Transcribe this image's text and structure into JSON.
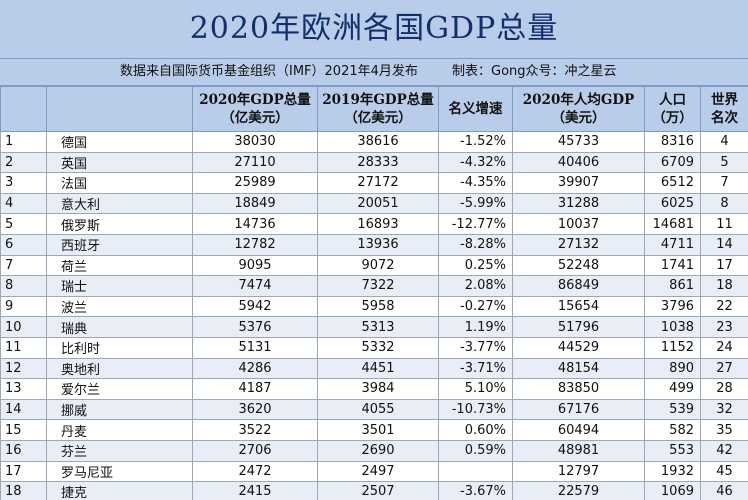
{
  "title": "2020年欧洲各国GDP总量",
  "source_note": "数据来自国际货币基金组织（IMF）2021年4月发布",
  "maker_note": "制表：Gong众号：冲之星云",
  "headers": [
    {
      "l1": "",
      "l2": ""
    },
    {
      "l1": "",
      "l2": ""
    },
    {
      "l1": "2020年GDP总量",
      "l2": "（亿美元）"
    },
    {
      "l1": "2019年GDP总量",
      "l2": "（亿美元）"
    },
    {
      "l1": "名义增速",
      "l2": ""
    },
    {
      "l1": "2020年人均GDP",
      "l2": "（美元）"
    },
    {
      "l1": "人口",
      "l2": "（万）"
    },
    {
      "l1": "世界",
      "l2": "名次"
    }
  ],
  "rows": [
    {
      "idx": "1",
      "name": "德国",
      "gdp2020": "38030",
      "gdp2019": "38616",
      "growth": "-1.52%",
      "per_capita": "45733",
      "population": "8316",
      "rank": "4"
    },
    {
      "idx": "2",
      "name": "英国",
      "gdp2020": "27110",
      "gdp2019": "28333",
      "growth": "-4.32%",
      "per_capita": "40406",
      "population": "6709",
      "rank": "5"
    },
    {
      "idx": "3",
      "name": "法国",
      "gdp2020": "25989",
      "gdp2019": "27172",
      "growth": "-4.35%",
      "per_capita": "39907",
      "population": "6512",
      "rank": "7"
    },
    {
      "idx": "4",
      "name": "意大利",
      "gdp2020": "18849",
      "gdp2019": "20051",
      "growth": "-5.99%",
      "per_capita": "31288",
      "population": "6025",
      "rank": "8"
    },
    {
      "idx": "5",
      "name": "俄罗斯",
      "gdp2020": "14736",
      "gdp2019": "16893",
      "growth": "-12.77%",
      "per_capita": "10037",
      "population": "14681",
      "rank": "11"
    },
    {
      "idx": "6",
      "name": "西班牙",
      "gdp2020": "12782",
      "gdp2019": "13936",
      "growth": "-8.28%",
      "per_capita": "27132",
      "population": "4711",
      "rank": "14"
    },
    {
      "idx": "7",
      "name": "荷兰",
      "gdp2020": "9095",
      "gdp2019": "9072",
      "growth": "0.25%",
      "per_capita": "52248",
      "population": "1741",
      "rank": "17"
    },
    {
      "idx": "8",
      "name": "瑞士",
      "gdp2020": "7474",
      "gdp2019": "7322",
      "growth": "2.08%",
      "per_capita": "86849",
      "population": "861",
      "rank": "18"
    },
    {
      "idx": "9",
      "name": "波兰",
      "gdp2020": "5942",
      "gdp2019": "5958",
      "growth": "-0.27%",
      "per_capita": "15654",
      "population": "3796",
      "rank": "22"
    },
    {
      "idx": "10",
      "name": "瑞典",
      "gdp2020": "5376",
      "gdp2019": "5313",
      "growth": "1.19%",
      "per_capita": "51796",
      "population": "1038",
      "rank": "23"
    },
    {
      "idx": "11",
      "name": "比利时",
      "gdp2020": "5131",
      "gdp2019": "5332",
      "growth": "-3.77%",
      "per_capita": "44529",
      "population": "1152",
      "rank": "24"
    },
    {
      "idx": "12",
      "name": "奥地利",
      "gdp2020": "4286",
      "gdp2019": "4451",
      "growth": "-3.71%",
      "per_capita": "48154",
      "population": "890",
      "rank": "27"
    },
    {
      "idx": "13",
      "name": "爱尔兰",
      "gdp2020": "4187",
      "gdp2019": "3984",
      "growth": "5.10%",
      "per_capita": "83850",
      "population": "499",
      "rank": "28"
    },
    {
      "idx": "14",
      "name": "挪威",
      "gdp2020": "3620",
      "gdp2019": "4055",
      "growth": "-10.73%",
      "per_capita": "67176",
      "population": "539",
      "rank": "32"
    },
    {
      "idx": "15",
      "name": "丹麦",
      "gdp2020": "3522",
      "gdp2019": "3501",
      "growth": "0.60%",
      "per_capita": "60494",
      "population": "582",
      "rank": "35"
    },
    {
      "idx": "16",
      "name": "芬兰",
      "gdp2020": "2706",
      "gdp2019": "2690",
      "growth": "0.59%",
      "per_capita": "48981",
      "population": "553",
      "rank": "42"
    },
    {
      "idx": "17",
      "name": "罗马尼亚",
      "gdp2020": "2472",
      "gdp2019": "2497",
      "growth": "",
      "per_capita": "12797",
      "population": "1932",
      "rank": "45"
    },
    {
      "idx": "18",
      "name": "捷克",
      "gdp2020": "2415",
      "gdp2019": "2507",
      "growth": "-3.67%",
      "per_capita": "22579",
      "population": "1069",
      "rank": "46"
    }
  ]
}
